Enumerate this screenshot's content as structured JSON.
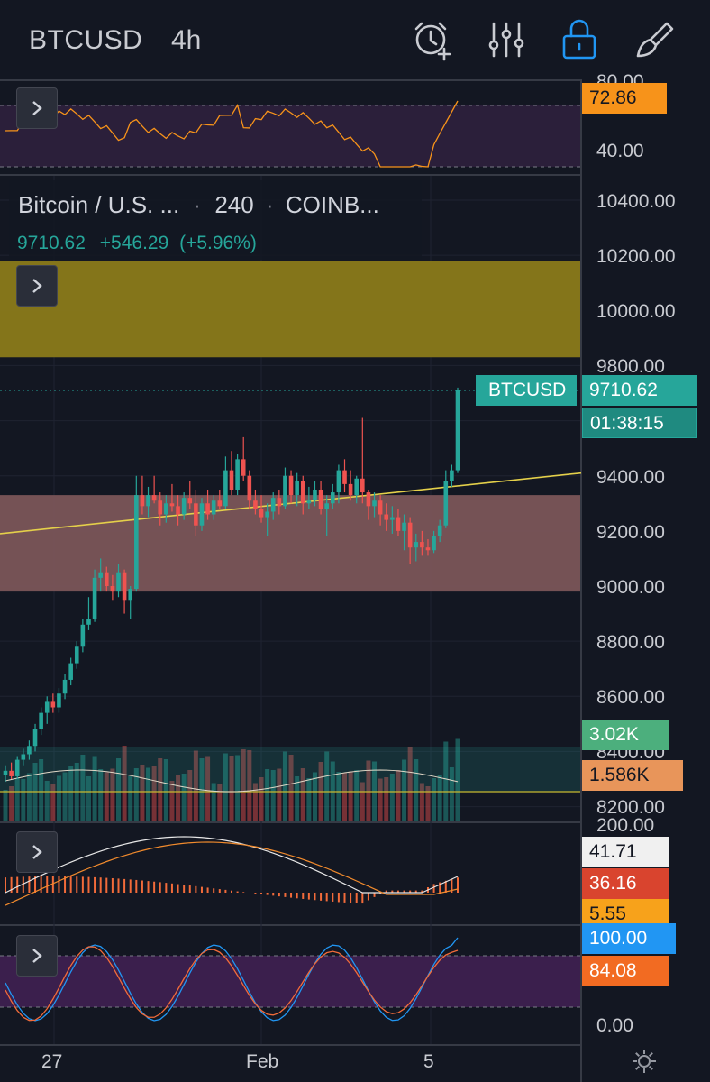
{
  "header": {
    "symbol": "BTCUSD",
    "timeframe": "4h",
    "icons": [
      "alarm-add-icon",
      "indicators-icon",
      "lock-icon",
      "drawing-brush-icon"
    ]
  },
  "legend": {
    "title": "Bitcoin / U.S. ...",
    "separator": "·",
    "interval": "240",
    "exchange": "COINB...",
    "close": "9710.62",
    "change": "+546.29",
    "change_pct": "(+5.96%)"
  },
  "rsi_panel": {
    "value_tag": "72.86",
    "levels": [
      "80.00",
      "40.00"
    ],
    "tag_color": "#f7931a"
  },
  "price_axis": {
    "labels": [
      "10400.00",
      "10200.00",
      "10000.00",
      "9800.00",
      "9400.00",
      "9200.00",
      "9000.00",
      "8800.00",
      "8600.00",
      "8400.00",
      "8200.00"
    ],
    "symbol_tag": "BTCUSD",
    "last_price": "9710.62",
    "countdown": "01:38:15",
    "volume_tag": "3.02K",
    "volume_ma_tag": "1.586K",
    "up_color": "#26a69a",
    "down_color": "#ef5350"
  },
  "macd_panel": {
    "axis_label": "200.00",
    "macd": "41.71",
    "signal": "36.16",
    "histogram": "5.55"
  },
  "stoch_panel": {
    "k": "100.00",
    "d": "84.08",
    "bottom": "0.00"
  },
  "time_axis": {
    "labels": [
      "27",
      "Feb",
      "5"
    ]
  },
  "chart_data": {
    "type": "candlestick",
    "symbol": "BTCUSD",
    "interval": "4h",
    "ylim": [
      8150,
      10500
    ],
    "last_close": 9710.62,
    "zones": [
      {
        "from": 9830,
        "to": 10180,
        "color": "#8a7a1a"
      },
      {
        "from": 8980,
        "to": 9330,
        "color": "#7a5558"
      }
    ],
    "trendline": {
      "x1": 0,
      "y1": 9190,
      "x2": 645,
      "y2": 9410
    },
    "candles": [
      [
        8315,
        8350,
        8290,
        8330
      ],
      [
        8330,
        8360,
        8300,
        8310
      ],
      [
        8310,
        8380,
        8300,
        8370
      ],
      [
        8370,
        8410,
        8350,
        8390
      ],
      [
        8390,
        8440,
        8370,
        8420
      ],
      [
        8420,
        8500,
        8400,
        8480
      ],
      [
        8480,
        8560,
        8460,
        8540
      ],
      [
        8540,
        8600,
        8500,
        8580
      ],
      [
        8580,
        8610,
        8540,
        8560
      ],
      [
        8560,
        8630,
        8540,
        8610
      ],
      [
        8610,
        8680,
        8590,
        8660
      ],
      [
        8660,
        8740,
        8640,
        8720
      ],
      [
        8720,
        8800,
        8700,
        8780
      ],
      [
        8780,
        8880,
        8760,
        8860
      ],
      [
        8860,
        8960,
        8840,
        8880
      ],
      [
        8880,
        9060,
        8870,
        9030
      ],
      [
        9030,
        9100,
        8980,
        9050
      ],
      [
        9050,
        9070,
        8980,
        9000
      ],
      [
        9000,
        9040,
        8950,
        8980
      ],
      [
        8980,
        9080,
        8960,
        9050
      ],
      [
        9050,
        9060,
        8900,
        8950
      ],
      [
        8950,
        9000,
        8880,
        8990
      ],
      [
        8990,
        9400,
        8980,
        9330
      ],
      [
        9330,
        9400,
        9260,
        9290
      ],
      [
        9290,
        9360,
        9250,
        9330
      ],
      [
        9330,
        9400,
        9300,
        9310
      ],
      [
        9310,
        9340,
        9220,
        9260
      ],
      [
        9260,
        9330,
        9230,
        9300
      ],
      [
        9300,
        9370,
        9270,
        9290
      ],
      [
        9290,
        9330,
        9220,
        9260
      ],
      [
        9260,
        9340,
        9240,
        9320
      ],
      [
        9320,
        9380,
        9280,
        9300
      ],
      [
        9300,
        9350,
        9180,
        9220
      ],
      [
        9220,
        9320,
        9200,
        9300
      ],
      [
        9300,
        9350,
        9240,
        9260
      ],
      [
        9260,
        9330,
        9240,
        9310
      ],
      [
        9310,
        9350,
        9280,
        9290
      ],
      [
        9290,
        9470,
        9280,
        9420
      ],
      [
        9420,
        9490,
        9330,
        9350
      ],
      [
        9350,
        9480,
        9330,
        9460
      ],
      [
        9460,
        9540,
        9380,
        9400
      ],
      [
        9400,
        9420,
        9280,
        9310
      ],
      [
        9310,
        9350,
        9260,
        9280
      ],
      [
        9280,
        9330,
        9230,
        9250
      ],
      [
        9250,
        9300,
        9180,
        9270
      ],
      [
        9270,
        9340,
        9240,
        9320
      ],
      [
        9320,
        9350,
        9260,
        9290
      ],
      [
        9290,
        9430,
        9280,
        9400
      ],
      [
        9400,
        9420,
        9300,
        9330
      ],
      [
        9330,
        9410,
        9290,
        9380
      ],
      [
        9380,
        9400,
        9260,
        9300
      ],
      [
        9300,
        9360,
        9280,
        9310
      ],
      [
        9310,
        9380,
        9290,
        9350
      ],
      [
        9350,
        9380,
        9260,
        9280
      ],
      [
        9280,
        9330,
        9180,
        9300
      ],
      [
        9300,
        9370,
        9280,
        9340
      ],
      [
        9340,
        9440,
        9300,
        9420
      ],
      [
        9420,
        9460,
        9340,
        9370
      ],
      [
        9370,
        9420,
        9310,
        9330
      ],
      [
        9330,
        9400,
        9300,
        9390
      ],
      [
        9390,
        9610,
        9300,
        9340
      ],
      [
        9340,
        9350,
        9240,
        9290
      ],
      [
        9290,
        9340,
        9250,
        9310
      ],
      [
        9310,
        9330,
        9220,
        9260
      ],
      [
        9260,
        9300,
        9200,
        9240
      ],
      [
        9240,
        9290,
        9190,
        9250
      ],
      [
        9250,
        9280,
        9180,
        9200
      ],
      [
        9200,
        9260,
        9130,
        9230
      ],
      [
        9230,
        9250,
        9080,
        9140
      ],
      [
        9140,
        9190,
        9090,
        9160
      ],
      [
        9160,
        9200,
        9110,
        9140
      ],
      [
        9140,
        9170,
        9110,
        9130
      ],
      [
        9130,
        9200,
        9120,
        9180
      ],
      [
        9180,
        9240,
        9160,
        9220
      ],
      [
        9220,
        9420,
        9210,
        9380
      ],
      [
        9380,
        9440,
        9360,
        9420
      ],
      [
        9420,
        9720,
        9410,
        9710
      ]
    ]
  }
}
